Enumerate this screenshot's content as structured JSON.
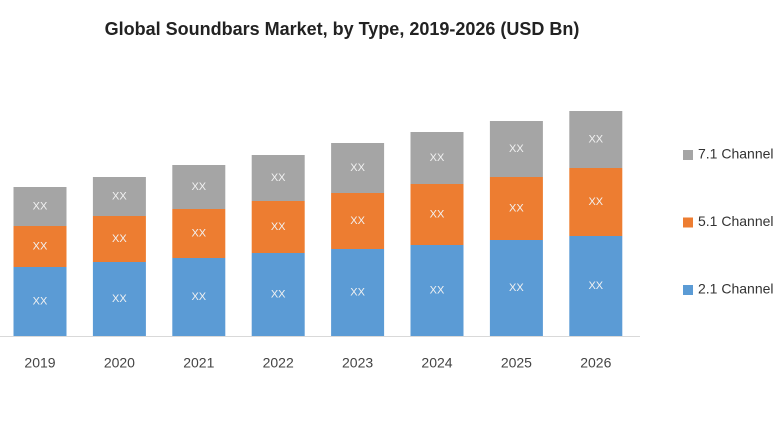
{
  "chart_data": {
    "type": "stacked_bar",
    "title": "Global Soundbars Market, by Type, 2019-2026 (USD Bn)",
    "categories": [
      "2019",
      "2020",
      "2021",
      "2022",
      "2023",
      "2024",
      "2025",
      "2026"
    ],
    "series": [
      {
        "name": "2.1 Channel",
        "color": "#5b9bd5",
        "values": [
          69,
          74,
          78,
          83,
          87,
          91,
          96,
          100
        ],
        "value_labels": [
          "XX",
          "XX",
          "XX",
          "XX",
          "XX",
          "XX",
          "XX",
          "XX"
        ]
      },
      {
        "name": "5.1 Channel",
        "color": "#ed7d31",
        "values": [
          41,
          46,
          49,
          52,
          56,
          61,
          63,
          68
        ],
        "value_labels": [
          "XX",
          "XX",
          "XX",
          "XX",
          "XX",
          "XX",
          "XX",
          "XX"
        ]
      },
      {
        "name": "7.1 Channel",
        "color": "#a5a5a5",
        "values": [
          39,
          39,
          44,
          46,
          50,
          52,
          56,
          57
        ],
        "value_labels": [
          "XX",
          "XX",
          "XX",
          "XX",
          "XX",
          "XX",
          "XX",
          "XX"
        ]
      }
    ],
    "legend": "right"
  }
}
